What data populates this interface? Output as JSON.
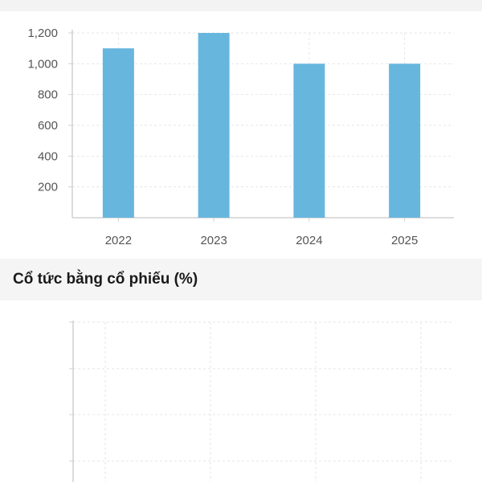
{
  "chart_data": [
    {
      "type": "bar",
      "title": "",
      "categories": [
        "2022",
        "2023",
        "2024",
        "2025"
      ],
      "values": [
        1100,
        1200,
        1000,
        1000
      ],
      "xlabel": "",
      "ylabel": "",
      "ylim": [
        0,
        1200
      ],
      "yticks": [
        200,
        400,
        600,
        800,
        1000,
        1200
      ],
      "ytick_labels": [
        "200",
        "400",
        "600",
        "800",
        "1,000",
        "1,200"
      ],
      "grid": true,
      "bar_color": "#67b6de"
    },
    {
      "type": "bar",
      "title": "Cổ tức bằng cổ phiếu (%)",
      "categories": [],
      "values": [],
      "grid": true
    }
  ],
  "colors": {
    "bar": "#67b6de",
    "grid": "#e6e6e6",
    "axis": "#d0d0d0",
    "header_bg": "#f5f5f5"
  }
}
